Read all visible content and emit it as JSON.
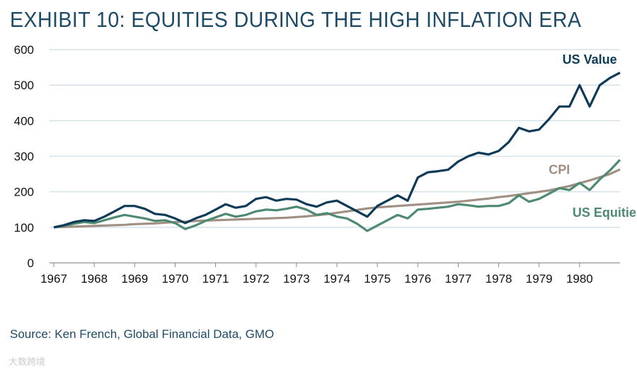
{
  "title": "EXHIBIT 10: EQUITIES DURING THE HIGH INFLATION ERA",
  "source": "Source: Ken French, Global Financial Data, GMO",
  "watermark": "大数跨境",
  "chart_data": {
    "type": "line",
    "title": "EXHIBIT 10: EQUITIES DURING THE HIGH INFLATION ERA",
    "xlabel": "",
    "ylabel": "",
    "ylim": [
      0,
      600
    ],
    "xlim": [
      1967,
      1981
    ],
    "yticks": [
      "0",
      "100",
      "200",
      "300",
      "400",
      "500",
      "600"
    ],
    "xticks": [
      "1967",
      "1968",
      "1969",
      "1970",
      "1971",
      "1972",
      "1973",
      "1974",
      "1975",
      "1976",
      "1977",
      "1978",
      "1979",
      "1980"
    ],
    "grid": "horizontal",
    "x_step": 0.25,
    "series": [
      {
        "name": "US Value",
        "color": "#0d3a56",
        "label_at": [
          1980.25,
          560
        ],
        "values": [
          100,
          106,
          115,
          120,
          118,
          130,
          145,
          160,
          160,
          152,
          138,
          135,
          125,
          112,
          125,
          135,
          150,
          165,
          155,
          160,
          180,
          185,
          175,
          180,
          178,
          165,
          158,
          170,
          175,
          160,
          145,
          130,
          160,
          175,
          190,
          175,
          240,
          255,
          258,
          262,
          285,
          300,
          310,
          305,
          315,
          340,
          380,
          370,
          375,
          405,
          440,
          440,
          500,
          440,
          500,
          520,
          535
        ]
      },
      {
        "name": "US Equities",
        "color": "#4e8a72",
        "label_at": [
          1980.7,
          130
        ],
        "values": [
          100,
          104,
          110,
          115,
          112,
          120,
          128,
          135,
          130,
          125,
          118,
          120,
          112,
          95,
          105,
          118,
          128,
          138,
          130,
          135,
          145,
          150,
          148,
          152,
          158,
          150,
          135,
          140,
          130,
          125,
          110,
          90,
          105,
          120,
          135,
          125,
          150,
          152,
          155,
          158,
          165,
          162,
          158,
          160,
          160,
          168,
          190,
          172,
          180,
          195,
          210,
          205,
          225,
          205,
          235,
          260,
          290
        ]
      },
      {
        "name": "CPI",
        "color": "#a08f82",
        "label_at": [
          1979.5,
          250
        ],
        "values": [
          100,
          101,
          102,
          103,
          104,
          105,
          106,
          107,
          109,
          110,
          111,
          113,
          115,
          116,
          118,
          119,
          120,
          121,
          122,
          123,
          124,
          125,
          126,
          127,
          129,
          131,
          134,
          137,
          141,
          145,
          149,
          153,
          156,
          158,
          160,
          162,
          164,
          166,
          168,
          170,
          172,
          175,
          178,
          181,
          185,
          188,
          192,
          196,
          200,
          204,
          210,
          216,
          224,
          232,
          241,
          250,
          263
        ]
      }
    ]
  }
}
